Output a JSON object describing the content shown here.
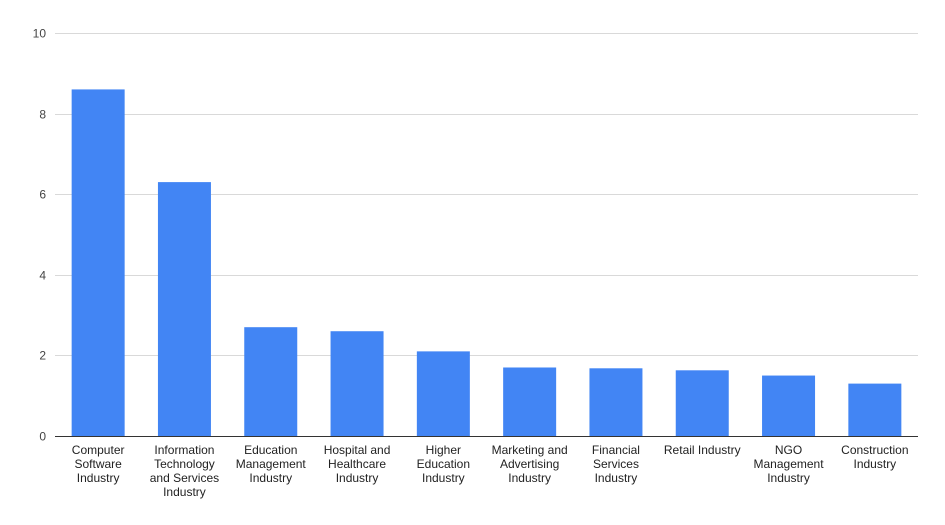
{
  "chart_data": {
    "type": "bar",
    "title": "",
    "xlabel": "",
    "ylabel": "",
    "ylim": [
      0,
      10
    ],
    "yticks": [
      0,
      2,
      4,
      6,
      8,
      10
    ],
    "grid": true,
    "bar_color": "#4285f4",
    "categories": [
      [
        "Computer",
        "Software",
        "Industry"
      ],
      [
        "Information",
        "Technology",
        "and Services",
        "Industry"
      ],
      [
        "Education",
        "Management",
        "Industry"
      ],
      [
        "Hospital and",
        "Healthcare",
        "Industry"
      ],
      [
        "Higher",
        "Education",
        "Industry"
      ],
      [
        "Marketing and",
        "Advertising",
        "Industry"
      ],
      [
        "Financial",
        "Services",
        "Industry"
      ],
      [
        "Retail Industry"
      ],
      [
        "NGO",
        "Management",
        "Industry"
      ],
      [
        "Construction",
        "Industry"
      ]
    ],
    "values": [
      8.6,
      6.3,
      2.7,
      2.6,
      2.1,
      1.7,
      1.68,
      1.63,
      1.5,
      1.3
    ]
  }
}
